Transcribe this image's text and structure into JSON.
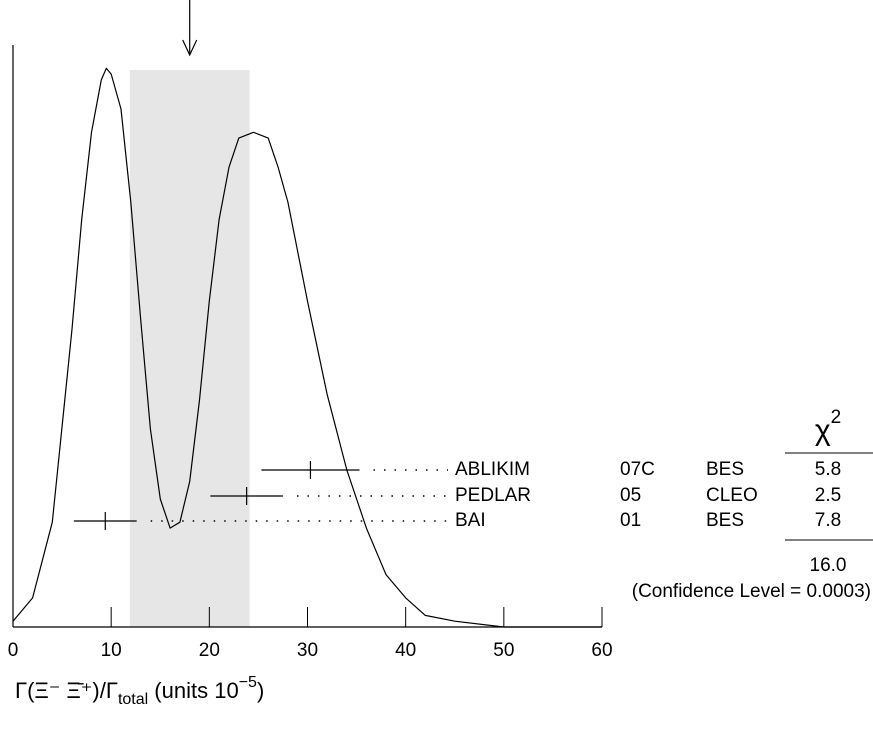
{
  "chart_data": {
    "type": "ideogram",
    "x_label": [
      "Γ(Ξ⁻ Ξ̄⁺)/Γ",
      "total",
      " (units 10",
      "−5",
      ")"
    ],
    "xlim": [
      0,
      60
    ],
    "xticks": [
      0,
      10,
      20,
      30,
      40,
      50,
      60
    ],
    "ylim": [
      0,
      1
    ],
    "curve": {
      "x": [
        0,
        2,
        4,
        6,
        7,
        8,
        9,
        9.5,
        10,
        11,
        12,
        13,
        14,
        15,
        16,
        17,
        18,
        19,
        20,
        21,
        22,
        23,
        24.5,
        26,
        27,
        28,
        30,
        32,
        34,
        36,
        38,
        40,
        42,
        45,
        50,
        60
      ],
      "y": [
        0.01,
        0.05,
        0.18,
        0.51,
        0.7,
        0.85,
        0.94,
        0.96,
        0.95,
        0.89,
        0.73,
        0.53,
        0.34,
        0.22,
        0.17,
        0.18,
        0.25,
        0.39,
        0.56,
        0.7,
        0.79,
        0.84,
        0.85,
        0.84,
        0.79,
        0.73,
        0.56,
        0.4,
        0.27,
        0.17,
        0.09,
        0.05,
        0.02,
        0.01,
        0,
        0
      ]
    },
    "average": 18.0,
    "average_error": 6.1,
    "chi2_header": "χ",
    "chi2_header_sup": "2",
    "measurements": [
      {
        "name": "ABLIKIM",
        "ref": "07C",
        "experiment": "BES",
        "value": 30.3,
        "error": 5.0,
        "chi2": 5.8
      },
      {
        "name": "PEDLAR",
        "ref": "05",
        "experiment": "CLEO",
        "value": 23.8,
        "error": 3.7,
        "chi2": 2.5
      },
      {
        "name": "BAI",
        "ref": "01",
        "experiment": "BES",
        "value": 9.4,
        "error": 3.2,
        "chi2": 7.8
      }
    ],
    "chi2_total": {
      "value": 16.0,
      "label": "16.0"
    },
    "confidence_level": "(Confidence Level = 0.0003)"
  }
}
